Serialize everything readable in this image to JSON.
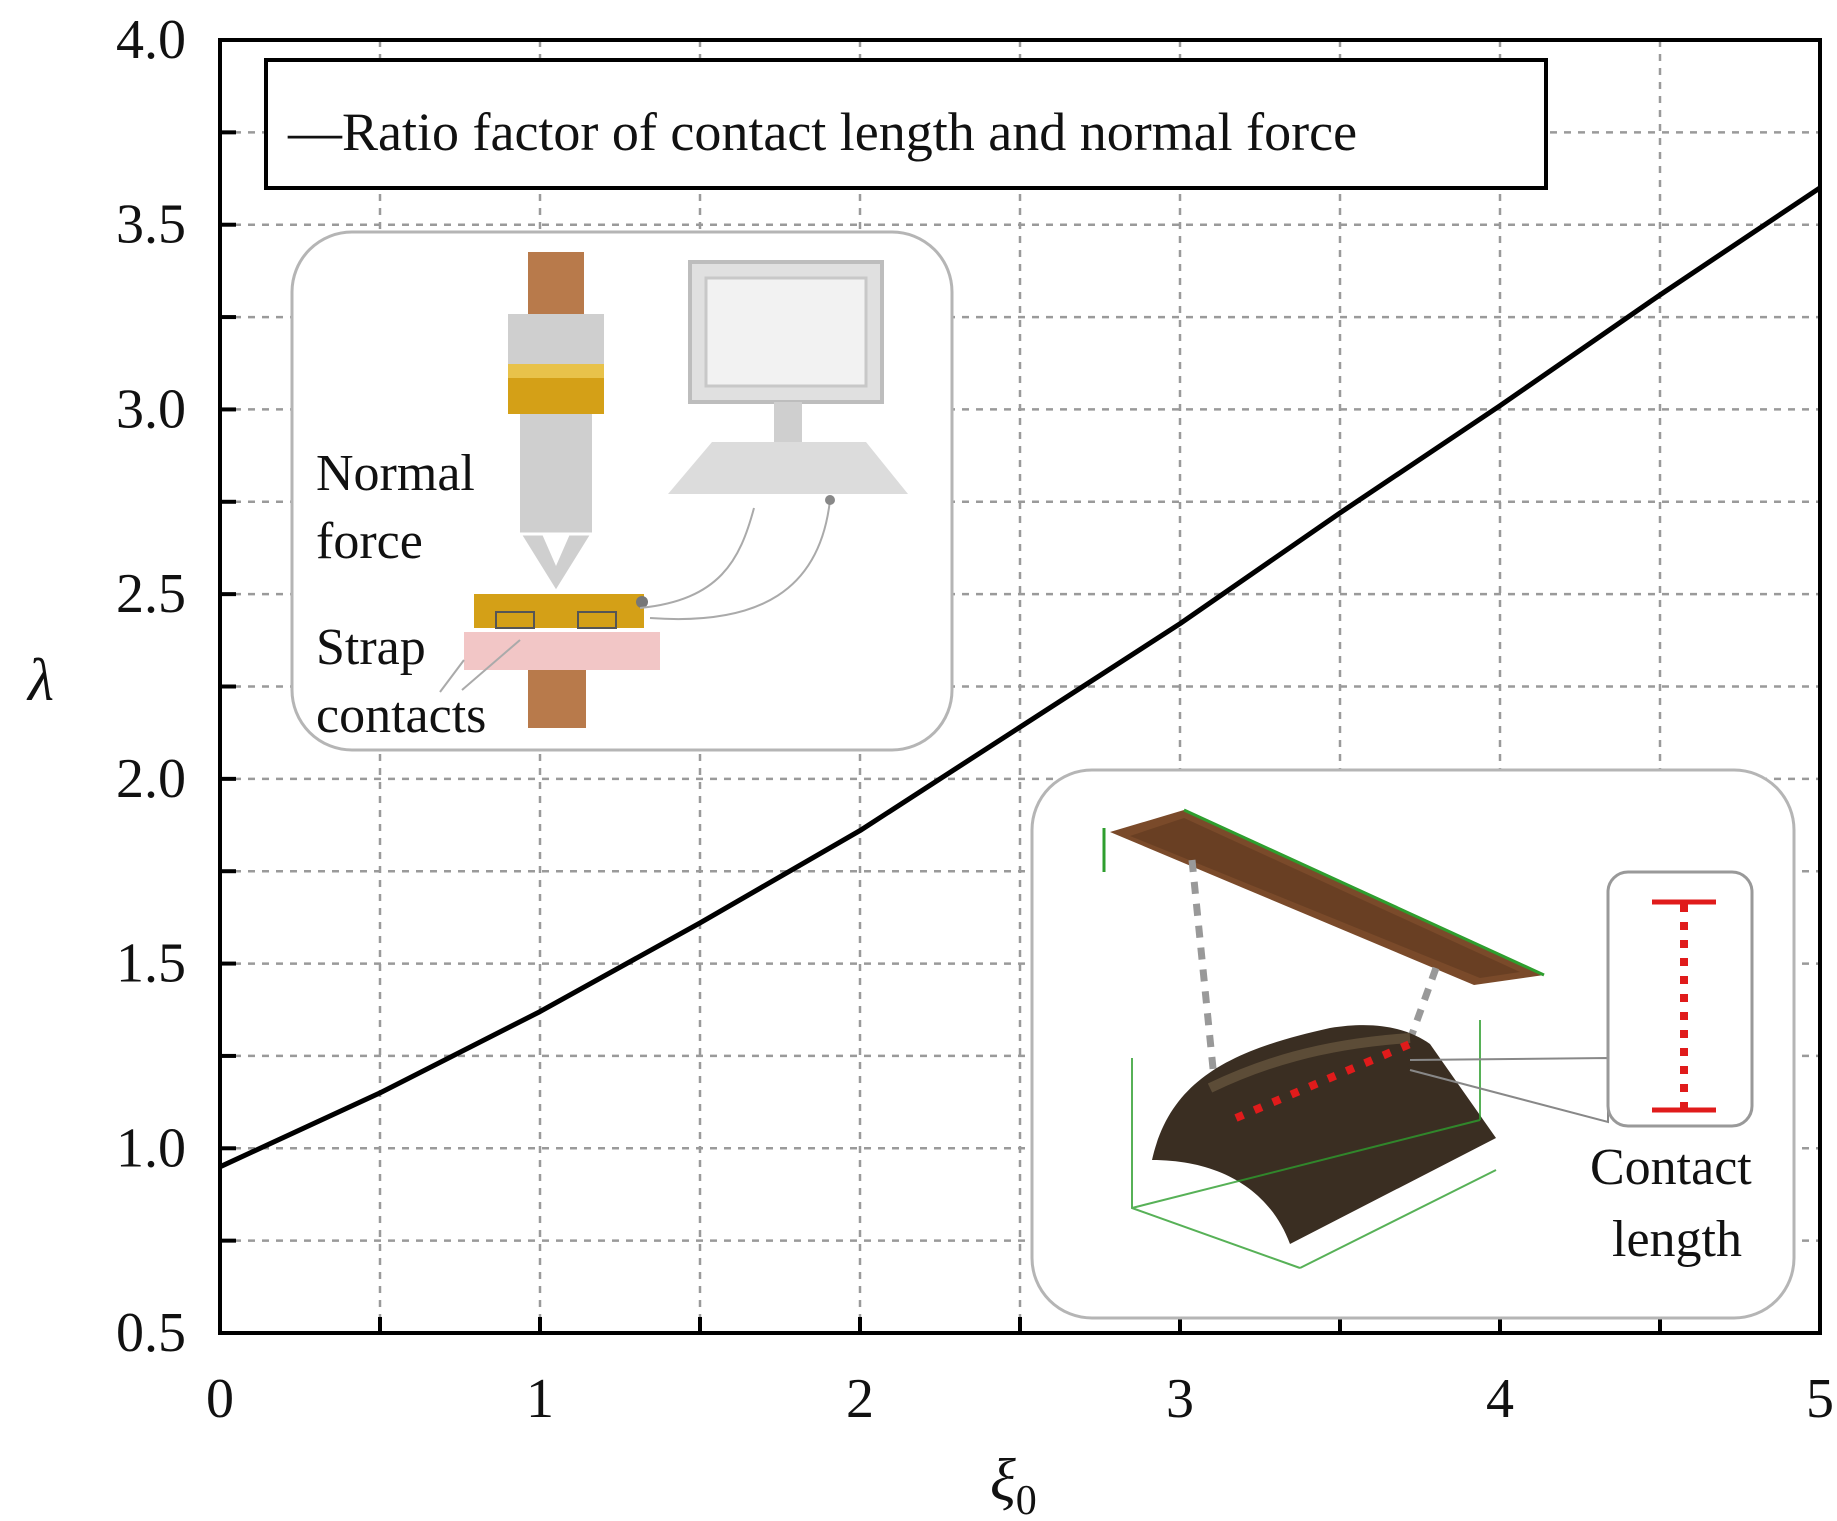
{
  "chart_data": {
    "type": "line",
    "title": "",
    "xlabel": "ξ0",
    "ylabel": "λ",
    "xlim": [
      0,
      5
    ],
    "ylim": [
      0.5,
      4.0
    ],
    "x_ticks": [
      "0",
      "1",
      "2",
      "3",
      "4",
      "5"
    ],
    "y_ticks": [
      "0.5",
      "1.0",
      "1.5",
      "2.0",
      "2.5",
      "3.0",
      "3.5",
      "4.0"
    ],
    "grid": true,
    "legend_position": "top",
    "series": [
      {
        "name": "Ratio factor of contact length and normal force",
        "color": "#000000",
        "x": [
          0,
          0.5,
          1.0,
          1.5,
          2.0,
          2.5,
          3.0,
          3.5,
          4.0,
          4.5,
          5.0
        ],
        "y": [
          0.95,
          1.15,
          1.37,
          1.61,
          1.86,
          2.14,
          2.42,
          2.72,
          3.01,
          3.31,
          3.6
        ]
      }
    ]
  },
  "legend": {
    "text": "—Ratio factor of contact length and normal force"
  },
  "inset_left": {
    "label_normal_1": "Normal",
    "label_normal_2": "force",
    "label_strap_1": "Strap",
    "label_strap_2": "contacts"
  },
  "inset_right": {
    "label_contact_1": "Contact",
    "label_contact_2": "length"
  },
  "colors": {
    "copper": "#b87a4b",
    "gold": "#d4a017",
    "gray": "#c8c8c8",
    "pink": "#f2c6c6",
    "red_dotted": "#e01b1b",
    "green_axes": "#2e9e2e"
  }
}
